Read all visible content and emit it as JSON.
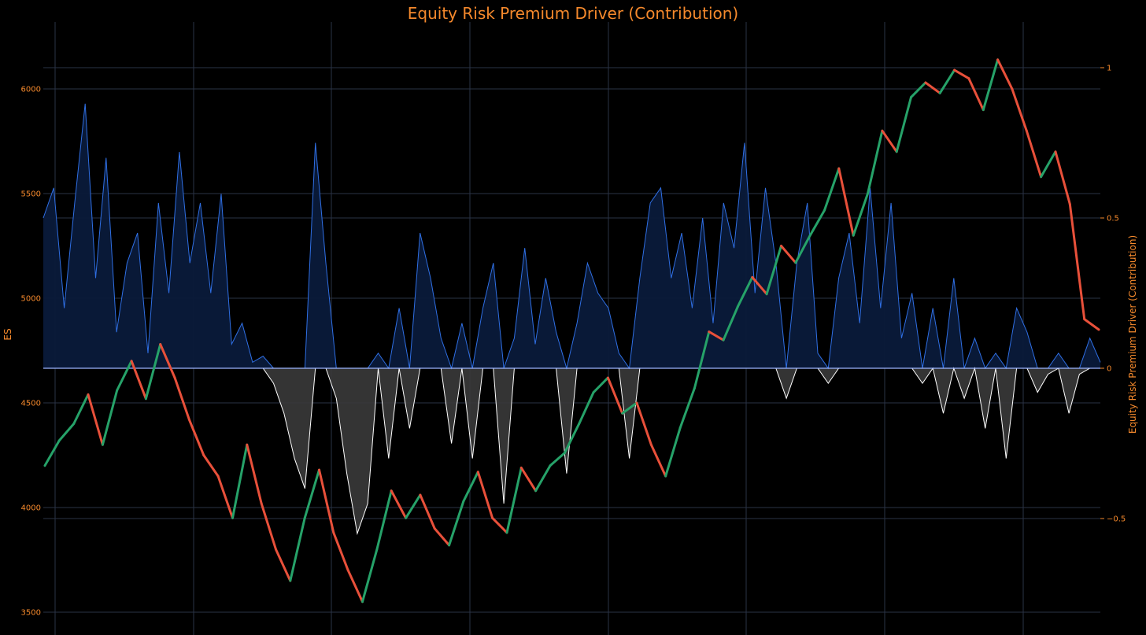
{
  "chart_data": {
    "type": "line",
    "title": "Equity Risk Premium Driver (Contribution)",
    "left_axis": {
      "label": "ES",
      "range": [
        3480,
        6250
      ],
      "ticks": [
        3500,
        4000,
        4500,
        5000,
        5500,
        6000
      ]
    },
    "right_axis": {
      "label": "Equity Risk Premium Driver (Contribution)",
      "range": [
        -0.5,
        1
      ],
      "ticks": [
        1,
        0.5,
        0,
        -0.5
      ],
      "tick_labels": [
        "1",
        "0.5",
        "0",
        "−0.5"
      ]
    },
    "grid": true,
    "price_series": {
      "name": "ES",
      "style": "candlestick",
      "points": [
        4200,
        4320,
        4400,
        4540,
        4300,
        4560,
        4700,
        4520,
        4780,
        4620,
        4420,
        4250,
        4150,
        3950,
        4300,
        4020,
        3800,
        3650,
        3950,
        4180,
        3880,
        3700,
        3550,
        3800,
        4080,
        3950,
        4060,
        3900,
        3820,
        4030,
        4170,
        3950,
        3880,
        4190,
        4080,
        4200,
        4260,
        4400,
        4550,
        4620,
        4450,
        4500,
        4300,
        4150,
        4380,
        4570,
        4840,
        4800,
        4960,
        5100,
        5020,
        5250,
        5170,
        5300,
        5420,
        5620,
        5300,
        5500,
        5800,
        5700,
        5960,
        6030,
        5980,
        6090,
        6050,
        5900,
        6140,
        6000,
        5800,
        5580,
        5700,
        5450,
        4900,
        4850
      ],
      "up_color": "#26a269",
      "down_color": "#e8503a"
    },
    "driver_series": {
      "name": "Equity Risk Premium Driver (Contribution)",
      "points": [
        0.5,
        0.6,
        0.2,
        0.55,
        0.88,
        0.3,
        0.7,
        0.12,
        0.35,
        0.45,
        0.05,
        0.55,
        0.25,
        0.72,
        0.35,
        0.55,
        0.25,
        0.58,
        0.08,
        0.15,
        0.02,
        0.04,
        -0.05,
        -0.15,
        -0.3,
        -0.4,
        0.75,
        0.35,
        -0.1,
        -0.35,
        -0.55,
        -0.45,
        0.05,
        -0.3,
        0.2,
        -0.2,
        0.45,
        0.3,
        0.1,
        -0.25,
        0.15,
        -0.3,
        0.2,
        0.35,
        -0.45,
        0.1,
        0.4,
        0.08,
        0.3,
        0.12,
        -0.35,
        0.15,
        0.35,
        0.25,
        0.2,
        0.05,
        -0.3,
        0.3,
        0.55,
        0.6,
        0.3,
        0.45,
        0.2,
        0.5,
        0.15,
        0.55,
        0.4,
        0.75,
        0.25,
        0.6,
        0.35,
        -0.1,
        0.35,
        0.55,
        0.05,
        -0.05,
        0.3,
        0.45,
        0.15,
        0.6,
        0.2,
        0.55,
        0.1,
        0.25,
        -0.05,
        0.2,
        -0.15,
        0.3,
        -0.1,
        0.1,
        -0.2,
        0.05,
        -0.3,
        0.2,
        0.12,
        -0.08,
        -0.02,
        0.05,
        -0.15,
        -0.02,
        0.1,
        0.02
      ],
      "positive_color": "#2f6fe4",
      "negative_color": "#ffffff"
    }
  }
}
